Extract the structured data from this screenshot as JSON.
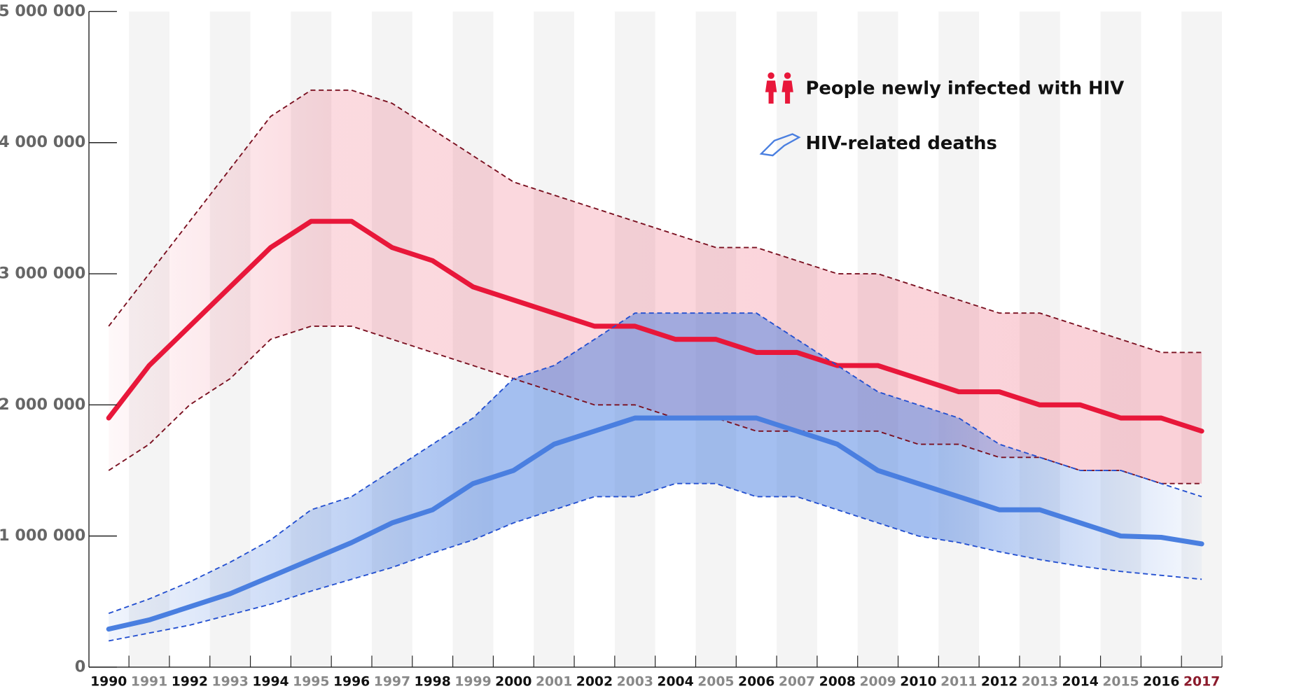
{
  "chart_data": {
    "type": "line",
    "categories": [
      "1990",
      "1991",
      "1992",
      "1993",
      "1994",
      "1995",
      "1996",
      "1997",
      "1998",
      "1999",
      "2000",
      "2001",
      "2002",
      "2003",
      "2004",
      "2005",
      "2006",
      "2007",
      "2008",
      "2009",
      "2010",
      "2011",
      "2012",
      "2013",
      "2014",
      "2015",
      "2016",
      "2017"
    ],
    "ylim": [
      0,
      5000000
    ],
    "yticks": [
      0,
      {
        "value": 1000000,
        "label": "1 000 000"
      },
      {
        "value": 2000000,
        "label": "2 000 000"
      },
      {
        "value": 3000000,
        "label": "3 000 000"
      },
      {
        "value": 4000000,
        "label": "4 000 000"
      },
      {
        "value": 5000000,
        "label": "5 000 000"
      }
    ],
    "series": [
      {
        "name": "People newly infected with HIV",
        "color": "#e8173a",
        "values": [
          1900000,
          2300000,
          2600000,
          2900000,
          3200000,
          3400000,
          3400000,
          3200000,
          3100000,
          2900000,
          2800000,
          2700000,
          2600000,
          2600000,
          2500000,
          2500000,
          2400000,
          2400000,
          2300000,
          2300000,
          2200000,
          2100000,
          2100000,
          2000000,
          2000000,
          1900000,
          1900000,
          1800000
        ],
        "upper": [
          2600000,
          3000000,
          3400000,
          3800000,
          4200000,
          4400000,
          4400000,
          4300000,
          4100000,
          3900000,
          3700000,
          3600000,
          3500000,
          3400000,
          3300000,
          3200000,
          3200000,
          3100000,
          3000000,
          3000000,
          2900000,
          2800000,
          2700000,
          2700000,
          2600000,
          2500000,
          2400000,
          2400000
        ],
        "lower": [
          1500000,
          1700000,
          2000000,
          2200000,
          2500000,
          2600000,
          2600000,
          2500000,
          2400000,
          2300000,
          2200000,
          2100000,
          2000000,
          2000000,
          1900000,
          1900000,
          1800000,
          1800000,
          1800000,
          1800000,
          1700000,
          1700000,
          1600000,
          1600000,
          1500000,
          1500000,
          1400000,
          1400000
        ]
      },
      {
        "name": "HIV-related deaths",
        "color": "#4a7fe0",
        "values": [
          290000,
          360000,
          460000,
          560000,
          690000,
          820000,
          950000,
          1100000,
          1200000,
          1400000,
          1500000,
          1700000,
          1800000,
          1900000,
          1900000,
          1900000,
          1900000,
          1800000,
          1700000,
          1500000,
          1400000,
          1300000,
          1200000,
          1200000,
          1100000,
          1000000,
          990000,
          940000
        ],
        "upper": [
          410000,
          520000,
          650000,
          800000,
          970000,
          1200000,
          1300000,
          1500000,
          1700000,
          1900000,
          2200000,
          2300000,
          2500000,
          2700000,
          2700000,
          2700000,
          2700000,
          2500000,
          2300000,
          2100000,
          2000000,
          1900000,
          1700000,
          1600000,
          1500000,
          1500000,
          1400000,
          1300000
        ],
        "lower": [
          200000,
          260000,
          320000,
          400000,
          480000,
          580000,
          670000,
          760000,
          870000,
          970000,
          1100000,
          1200000,
          1300000,
          1300000,
          1400000,
          1400000,
          1300000,
          1300000,
          1200000,
          1100000,
          1000000,
          950000,
          880000,
          820000,
          770000,
          730000,
          700000,
          670000
        ]
      }
    ]
  }
}
